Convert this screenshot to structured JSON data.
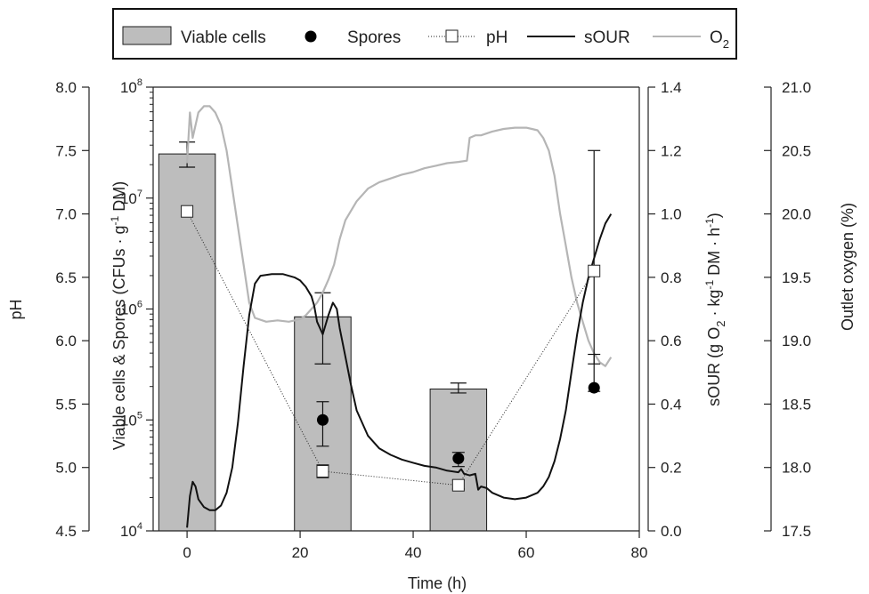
{
  "colors": {
    "bar_fill": "#bdbdbd",
    "bar_stroke": "#1a1a1a",
    "sOUR": "#111111",
    "O2": "#b5b5b5",
    "pH": "#222222",
    "spores": "#000000",
    "axis": "#222222"
  },
  "legend": {
    "viable_cells": "Viable cells",
    "spores": "Spores",
    "pH": "pH",
    "sOUR": "sOUR",
    "O2_main": "O",
    "O2_sub": "2"
  },
  "axes": {
    "xlabel": "Time (h)",
    "ph_label": "pH",
    "cells_label_main": "Viable cells & Spores (CFUs · g",
    "cells_label_sup": "-1",
    "cells_label_end": " DM)",
    "sour_label_a": "sOUR (g O",
    "sour_label_sub": "2",
    "sour_label_b": " · kg",
    "sour_label_sup1": "-1",
    "sour_label_c": " DM · h",
    "sour_label_sup2": "-1",
    "sour_label_d": ")",
    "o2_label": "Outlet oxygen (%)"
  },
  "chart_data": {
    "type": "bar",
    "xlim": [
      -6,
      80
    ],
    "x_ticks": [
      "0",
      "20",
      "40",
      "60",
      "80"
    ],
    "y_cells": {
      "scale": "log",
      "lim": [
        10000,
        100000000
      ],
      "ticks": [
        [
          "10",
          "4"
        ],
        [
          "10",
          "5"
        ],
        [
          "10",
          "6"
        ],
        [
          "10",
          "7"
        ],
        [
          "10",
          "8"
        ]
      ]
    },
    "y_pH": {
      "lim": [
        4.5,
        8.0
      ],
      "ticks": [
        "4.5",
        "5.0",
        "5.5",
        "6.0",
        "6.5",
        "7.0",
        "7.5",
        "8.0"
      ]
    },
    "y_sOUR": {
      "lim": [
        0.0,
        1.4
      ],
      "ticks": [
        "0.0",
        "0.2",
        "0.4",
        "0.6",
        "0.8",
        "1.0",
        "1.2",
        "1.4"
      ]
    },
    "y_O2": {
      "lim": [
        17.5,
        21.0
      ],
      "ticks": [
        "17.5",
        "18.0",
        "18.5",
        "19.0",
        "19.5",
        "20.0",
        "20.5",
        "21.0"
      ]
    },
    "viable_cells": {
      "x": [
        0,
        24,
        48
      ],
      "values": [
        25000000,
        850000,
        190000
      ],
      "err_low": [
        19000000,
        320000,
        175000
      ],
      "err_high": [
        32000000,
        1400000,
        215000
      ],
      "bar_width_h": 10
    },
    "spores": {
      "x": [
        24,
        48,
        72
      ],
      "values": [
        100000,
        45000,
        195000
      ],
      "err_low": [
        58000,
        38000,
        320000
      ],
      "err_high": [
        146000,
        51000,
        390000
      ]
    },
    "pH": {
      "x": [
        0,
        24,
        48,
        72
      ],
      "values": [
        7.02,
        4.97,
        4.86,
        6.55
      ],
      "err_low": [
        7.02,
        4.92,
        4.83,
        5.6
      ],
      "err_high": [
        7.02,
        5.02,
        4.9,
        7.5
      ]
    },
    "sOUR": {
      "x": [
        0,
        0.5,
        1,
        1.5,
        2,
        3,
        4,
        5,
        6,
        7,
        8,
        9,
        10,
        11,
        12,
        13,
        15,
        17,
        19,
        20,
        21,
        22,
        22.5,
        23,
        24,
        25,
        25.8,
        26.5,
        27,
        28,
        29,
        30,
        32,
        34,
        36,
        38,
        40,
        42,
        44,
        46,
        48,
        48.5,
        49,
        50,
        51,
        51.5,
        52,
        53,
        54,
        56,
        58,
        60,
        62,
        63,
        64,
        65,
        66,
        67,
        68,
        69,
        70,
        71,
        72,
        73,
        74,
        75
      ],
      "values": [
        0.01,
        0.11,
        0.155,
        0.14,
        0.1,
        0.075,
        0.065,
        0.065,
        0.08,
        0.12,
        0.2,
        0.34,
        0.52,
        0.68,
        0.78,
        0.805,
        0.81,
        0.81,
        0.8,
        0.79,
        0.77,
        0.74,
        0.71,
        0.66,
        0.62,
        0.68,
        0.72,
        0.7,
        0.64,
        0.55,
        0.46,
        0.38,
        0.3,
        0.26,
        0.24,
        0.225,
        0.215,
        0.205,
        0.2,
        0.19,
        0.185,
        0.195,
        0.18,
        0.175,
        0.18,
        0.13,
        0.14,
        0.135,
        0.12,
        0.105,
        0.1,
        0.105,
        0.12,
        0.14,
        0.17,
        0.22,
        0.29,
        0.38,
        0.5,
        0.62,
        0.72,
        0.8,
        0.86,
        0.92,
        0.97,
        1.0
      ]
    },
    "O2": {
      "x": [
        0,
        0.5,
        1,
        2,
        3,
        4,
        5,
        6,
        7,
        8,
        9,
        10,
        11,
        12,
        14,
        16,
        18,
        20,
        21,
        22,
        23,
        24,
        25,
        26,
        27,
        28,
        30,
        32,
        34,
        36,
        38,
        40,
        42,
        44,
        46,
        48,
        49.5,
        50,
        51,
        52,
        54,
        56,
        58,
        60,
        61,
        62,
        63,
        64,
        65,
        66,
        67,
        68,
        69,
        70,
        71,
        72,
        73,
        74,
        75
      ],
      "values": [
        20.4,
        20.8,
        20.6,
        20.8,
        20.85,
        20.85,
        20.8,
        20.7,
        20.5,
        20.2,
        19.9,
        19.6,
        19.3,
        19.18,
        19.15,
        19.16,
        19.15,
        19.17,
        19.2,
        19.25,
        19.3,
        19.38,
        19.48,
        19.6,
        19.8,
        19.95,
        20.1,
        20.2,
        20.25,
        20.28,
        20.31,
        20.33,
        20.36,
        20.38,
        20.4,
        20.41,
        20.42,
        20.6,
        20.62,
        20.62,
        20.65,
        20.67,
        20.68,
        20.68,
        20.67,
        20.66,
        20.6,
        20.5,
        20.3,
        20.0,
        19.75,
        19.5,
        19.3,
        19.15,
        19.0,
        18.9,
        18.83,
        18.8,
        18.87
      ]
    }
  }
}
